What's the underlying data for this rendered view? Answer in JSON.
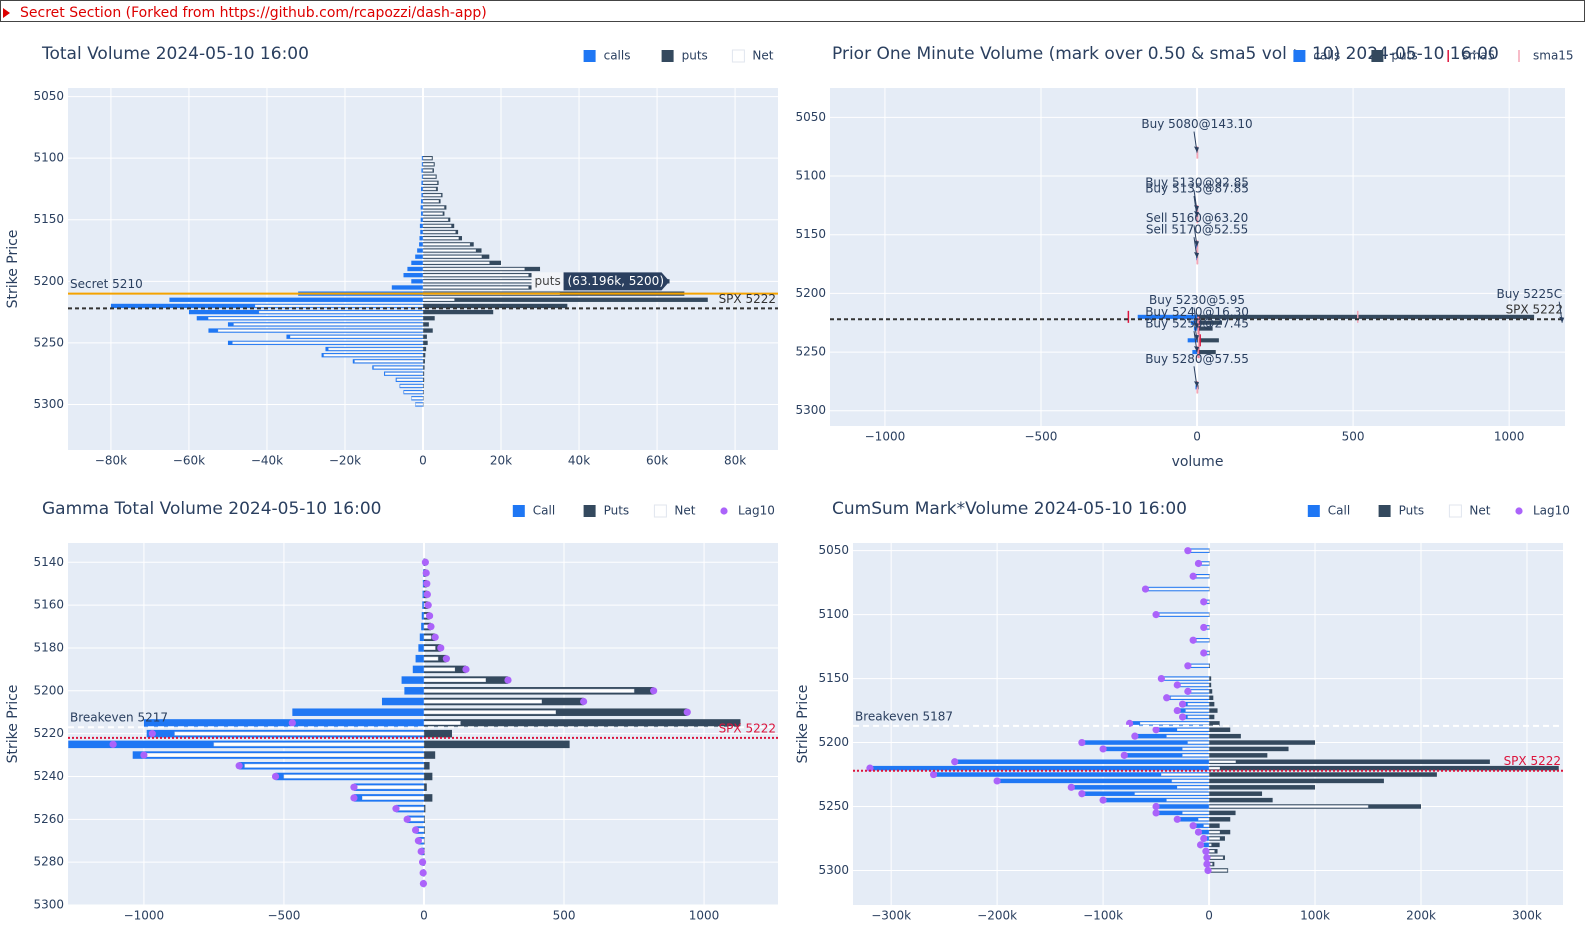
{
  "header": {
    "text": "Secret Section (Forked from https://github.com/rcapozzi/dash-app)"
  },
  "chart_data": [
    {
      "type": "bar",
      "orientation": "h",
      "title": "Total Volume 2024-05-10 16:00",
      "ytitle": "Strike Price",
      "yreverse": true,
      "grid": true,
      "legend": "top-right",
      "xlim": [
        -91000,
        91000
      ],
      "xticks": [
        {
          "value": -80000,
          "label": "−80k"
        },
        {
          "value": -60000,
          "label": "−60k"
        },
        {
          "value": -40000,
          "label": "−40k"
        },
        {
          "value": -20000,
          "label": "−20k"
        },
        0,
        {
          "value": 20000,
          "label": "20k"
        },
        {
          "value": 40000,
          "label": "40k"
        },
        {
          "value": 60000,
          "label": "60k"
        },
        {
          "value": 80000,
          "label": "80k"
        }
      ],
      "ylim": [
        5043,
        5337
      ],
      "yticks": [
        5050,
        5100,
        5150,
        5200,
        5250,
        5300
      ],
      "y": [
        5100,
        5105,
        5110,
        5115,
        5120,
        5125,
        5130,
        5135,
        5140,
        5145,
        5150,
        5155,
        5160,
        5165,
        5170,
        5175,
        5180,
        5185,
        5190,
        5195,
        5200,
        5205,
        5210,
        5215,
        5220,
        5225,
        5230,
        5235,
        5240,
        5245,
        5250,
        5255,
        5260,
        5265,
        5270,
        5275,
        5280,
        5285,
        5290,
        5295,
        5300
      ],
      "series": [
        {
          "name": "calls",
          "mode": "bar",
          "color": "#1f77f4",
          "values": [
            -300,
            -300,
            -400,
            -300,
            -400,
            -500,
            -400,
            -500,
            -600,
            -500,
            -600,
            -800,
            -700,
            -900,
            -1000,
            -1500,
            -2000,
            -3000,
            -4000,
            -5000,
            -3000,
            -8000,
            -32000,
            -65000,
            -80000,
            -60000,
            -58000,
            -50000,
            -55000,
            -35000,
            -50000,
            -25000,
            -26000,
            -18000,
            -13000,
            -10000,
            -7000,
            -6000,
            -5000,
            -3000,
            -2000
          ]
        },
        {
          "name": "puts",
          "mode": "bar",
          "color": "#34495e",
          "values": [
            2500,
            3000,
            2800,
            3500,
            4000,
            3800,
            5000,
            4500,
            6000,
            5500,
            7000,
            8000,
            9000,
            10000,
            13000,
            15000,
            17000,
            20000,
            30000,
            32000,
            63196,
            35000,
            67000,
            73000,
            37000,
            18000,
            3000,
            1500,
            2500,
            1000,
            1200,
            800,
            600,
            500,
            400,
            300,
            300,
            200,
            200,
            150,
            100
          ]
        },
        {
          "name": "Net",
          "mode": "bar",
          "color": "#ffffff",
          "values": [
            2200,
            2700,
            2400,
            3200,
            3600,
            3300,
            4600,
            4000,
            5400,
            5000,
            6400,
            7200,
            8300,
            9100,
            12000,
            13500,
            15000,
            17000,
            26000,
            27000,
            60196,
            27000,
            35000,
            8000,
            -43000,
            -42000,
            -55000,
            -48500,
            -52500,
            -34000,
            -48800,
            -24200,
            -25400,
            -17500,
            -12600,
            -9700,
            -6700,
            -5800,
            -4800,
            -2850,
            -1900
          ]
        }
      ],
      "hlines": [
        {
          "y": 5210,
          "color": "#f5a300",
          "dash": "none",
          "label": "Secret 5210",
          "side": "left"
        },
        {
          "y": 5222,
          "color": "#333333",
          "dash": "4,3",
          "label": "SPX 5222",
          "side": "right"
        }
      ],
      "hover": {
        "name": "puts",
        "label": "(63.196k, 5200)",
        "x": 63196,
        "y": 5200
      }
    },
    {
      "type": "bar",
      "orientation": "h",
      "title": "Prior One Minute Volume (mark over 0.50 & sma5 vol > 10) 2024-05-10 16:00",
      "xtitle": "volume",
      "yreverse": true,
      "grid": true,
      "legend": "top-right",
      "xlim": [
        -1176,
        1179
      ],
      "xticks": [
        {
          "value": -1000,
          "label": "−1000"
        },
        {
          "value": -500,
          "label": "−500"
        },
        0,
        500,
        1000
      ],
      "ylim": [
        5025,
        5313
      ],
      "yticks": [
        5050,
        5100,
        5150,
        5200,
        5250,
        5300
      ],
      "y": [
        5080,
        5130,
        5135,
        5160,
        5170,
        5220,
        5225,
        5230,
        5240,
        5250,
        5280
      ],
      "series": [
        {
          "name": "calls",
          "mode": "bar",
          "color": "#1f77f4",
          "values": [
            -2,
            -3,
            -2,
            -4,
            -3,
            -190,
            -20,
            -10,
            -30,
            -15,
            -5
          ]
        },
        {
          "name": "puts",
          "mode": "bar",
          "color": "#34495e",
          "values": [
            3,
            2,
            2,
            3,
            3,
            1080,
            80,
            50,
            70,
            60,
            5
          ]
        },
        {
          "name": "sma5",
          "mode": "markers",
          "symbol": "line-ns",
          "color": "#dc143c",
          "values": [
            1,
            1,
            1,
            1,
            1,
            -220,
            5,
            5,
            10,
            5,
            1
          ]
        },
        {
          "name": "sma15",
          "mode": "markers",
          "symbol": "line-ns",
          "color": "#f4a6b6",
          "values": [
            1,
            1,
            1,
            1,
            1,
            515,
            3,
            3,
            5,
            3,
            1
          ]
        }
      ],
      "hlines": [
        {
          "y": 5222,
          "color": "#333333",
          "dash": "4,3",
          "label": "SPX 5222",
          "side": "right"
        }
      ],
      "annotations": [
        {
          "text": "Buy 5080@143.10",
          "x": 0,
          "y": 5080
        },
        {
          "text": "Buy 5130@92.85",
          "x": 0,
          "y": 5130
        },
        {
          "text": "Buy 5135@87.85",
          "x": 0,
          "y": 5135
        },
        {
          "text": "Sell 5160@63.20",
          "x": 0,
          "y": 5160
        },
        {
          "text": "Sell 5170@52.55",
          "x": 0,
          "y": 5170
        },
        {
          "text": "Buy 5230@5.95",
          "x": 0,
          "y": 5230
        },
        {
          "text": "Buy 5240@16.30",
          "x": 0,
          "y": 5240
        },
        {
          "text": "Buy 5250@27.45",
          "x": 0,
          "y": 5250
        },
        {
          "text": "Buy 5280@57.55",
          "x": 0,
          "y": 5280
        },
        {
          "text": "Buy 5225C",
          "x": 1170,
          "y": 5225
        }
      ]
    },
    {
      "type": "bar",
      "orientation": "h",
      "title": "Gamma Total Volume 2024-05-10 16:00",
      "ytitle": "Strike Price",
      "yreverse": true,
      "grid": true,
      "legend": "top-right",
      "xlim": [
        -1271,
        1264
      ],
      "xticks": [
        {
          "value": -1000,
          "label": "−1000"
        },
        {
          "value": -500,
          "label": "−500"
        },
        0,
        500,
        1000
      ],
      "ylim": [
        5131,
        5300
      ],
      "yticks": [
        5140,
        5160,
        5180,
        5200,
        5220,
        5240,
        5260,
        5280,
        5300
      ],
      "y": [
        5140,
        5145,
        5150,
        5155,
        5160,
        5165,
        5170,
        5175,
        5180,
        5185,
        5190,
        5195,
        5200,
        5205,
        5210,
        5215,
        5220,
        5225,
        5230,
        5235,
        5240,
        5245,
        5250,
        5255,
        5260,
        5265,
        5270,
        5275,
        5280,
        5285,
        5290
      ],
      "series": [
        {
          "name": "Call",
          "mode": "bar",
          "color": "#1f77f4",
          "values": [
            -2,
            -3,
            -4,
            -5,
            -6,
            -8,
            -10,
            -15,
            -20,
            -30,
            -40,
            -80,
            -70,
            -150,
            -470,
            -1000,
            -990,
            -1270,
            -1040,
            -660,
            -530,
            -250,
            -250,
            -100,
            -60,
            -30,
            -20,
            -10,
            -5,
            -3,
            -2
          ]
        },
        {
          "name": "Puts",
          "mode": "bar",
          "color": "#34495e",
          "values": [
            5,
            8,
            10,
            12,
            15,
            20,
            25,
            40,
            60,
            80,
            150,
            300,
            820,
            570,
            940,
            1130,
            100,
            520,
            40,
            20,
            30,
            10,
            30,
            5,
            3,
            3,
            2,
            2,
            2,
            1,
            1
          ]
        },
        {
          "name": "Net",
          "mode": "bar",
          "color": "#ffffff",
          "values": [
            3,
            5,
            6,
            7,
            9,
            12,
            15,
            25,
            40,
            50,
            110,
            220,
            750,
            420,
            470,
            130,
            -890,
            -750,
            -1000,
            -640,
            -500,
            -240,
            -220,
            -95,
            -57,
            -27,
            -18,
            -8,
            -3,
            -2,
            -1
          ]
        },
        {
          "name": "Lag10",
          "mode": "markers",
          "symbol": "circle",
          "color": "#ab63fa",
          "values": [
            5,
            8,
            10,
            12,
            15,
            20,
            25,
            40,
            60,
            80,
            150,
            300,
            820,
            570,
            940,
            -470,
            -970,
            -1110,
            -1000,
            -660,
            -530,
            -250,
            -250,
            -100,
            -60,
            -30,
            -20,
            -10,
            -5,
            -3,
            -2
          ]
        }
      ],
      "hlines": [
        {
          "y": 5217,
          "color": "#ffffff",
          "dash": "6,4",
          "label": "Breakeven 5217",
          "side": "left"
        },
        {
          "y": 5222,
          "color": "#dc143c",
          "dash": "2,2",
          "label": "SPX 5222",
          "side": "right"
        }
      ]
    },
    {
      "type": "bar",
      "orientation": "h",
      "title": "CumSum Mark*Volume 2024-05-10 16:00",
      "ytitle": "Strike Price",
      "yreverse": true,
      "grid": true,
      "legend": "top-right",
      "xlim": [
        -336000,
        334000
      ],
      "xticks": [
        {
          "value": -300000,
          "label": "−300k"
        },
        {
          "value": -200000,
          "label": "−200k"
        },
        {
          "value": -100000,
          "label": "−100k"
        },
        0,
        {
          "value": 100000,
          "label": "100k"
        },
        {
          "value": 200000,
          "label": "200k"
        },
        {
          "value": 300000,
          "label": "300k"
        }
      ],
      "ylim": [
        5044,
        5327
      ],
      "yticks": [
        5050,
        5100,
        5150,
        5200,
        5250,
        5300
      ],
      "y": [
        5050,
        5060,
        5070,
        5080,
        5090,
        5100,
        5110,
        5120,
        5130,
        5140,
        5150,
        5155,
        5160,
        5165,
        5170,
        5175,
        5180,
        5185,
        5190,
        5195,
        5200,
        5205,
        5210,
        5215,
        5220,
        5225,
        5230,
        5235,
        5240,
        5245,
        5250,
        5255,
        5260,
        5265,
        5270,
        5275,
        5280,
        5285,
        5290,
        5295,
        5300
      ],
      "series": [
        {
          "name": "Call",
          "mode": "bar",
          "color": "#1f77f4",
          "values": [
            -20000,
            -10000,
            -15000,
            -60000,
            -5000,
            -50000,
            -5000,
            -15000,
            -5000,
            -20000,
            -45000,
            -30000,
            -20000,
            -40000,
            -25000,
            -30000,
            -25000,
            -75000,
            -50000,
            -70000,
            -120000,
            -100000,
            -80000,
            -240000,
            -320000,
            -260000,
            -200000,
            -130000,
            -120000,
            -100000,
            -50000,
            -50000,
            -30000,
            -15000,
            -10000,
            -5000,
            -8000,
            -3000,
            -2000,
            -2000,
            -1000
          ]
        },
        {
          "name": "Puts",
          "mode": "bar",
          "color": "#34495e",
          "values": [
            100,
            100,
            200,
            300,
            300,
            400,
            400,
            500,
            600,
            800,
            2000,
            2000,
            3000,
            4000,
            5000,
            8000,
            5000,
            10000,
            20000,
            30000,
            100000,
            75000,
            55000,
            265000,
            330000,
            215000,
            165000,
            100000,
            50000,
            60000,
            200000,
            25000,
            20000,
            10000,
            20000,
            15000,
            10000,
            8000,
            15000,
            5000,
            18000
          ]
        },
        {
          "name": "Net",
          "mode": "bar",
          "color": "#ffffff",
          "values": [
            -19900,
            -9900,
            -14800,
            -59700,
            -4700,
            -49600,
            -4600,
            -14500,
            -4400,
            -19200,
            -43000,
            -28000,
            -17000,
            -36000,
            -20000,
            -22000,
            -20000,
            -65000,
            -30000,
            -40000,
            -20000,
            -25000,
            -25000,
            25000,
            10000,
            -45000,
            -35000,
            -30000,
            -70000,
            -40000,
            150000,
            -25000,
            -10000,
            -5000,
            10000,
            10000,
            2000,
            5000,
            13000,
            3000,
            17000
          ]
        },
        {
          "name": "Lag10",
          "mode": "markers",
          "symbol": "circle",
          "color": "#ab63fa",
          "values": [
            -20000,
            -10000,
            -15000,
            -60000,
            -5000,
            -50000,
            -5000,
            -15000,
            -5000,
            -20000,
            -45000,
            -30000,
            -20000,
            -40000,
            -25000,
            -30000,
            -25000,
            -75000,
            -50000,
            -70000,
            -120000,
            -100000,
            -80000,
            -240000,
            -320000,
            -260000,
            -200000,
            -130000,
            -120000,
            -100000,
            -50000,
            -50000,
            -30000,
            -15000,
            -10000,
            -5000,
            -8000,
            -3000,
            -2000,
            -2000,
            -1000
          ]
        }
      ],
      "hlines": [
        {
          "y": 5187,
          "color": "#ffffff",
          "dash": "6,4",
          "label": "Breakeven 5187",
          "side": "left"
        },
        {
          "y": 5222,
          "color": "#dc143c",
          "dash": "2,2",
          "label": "SPX 5222",
          "side": "right"
        }
      ]
    }
  ]
}
